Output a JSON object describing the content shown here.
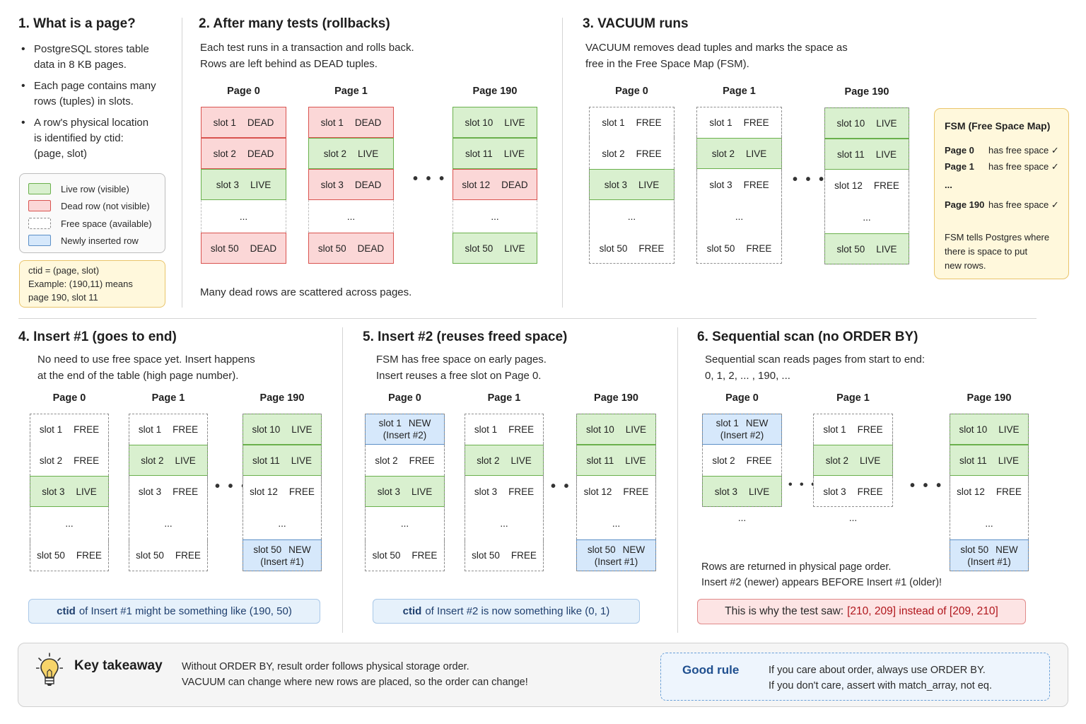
{
  "sec1": {
    "title": "1.  What is a page?",
    "bullets": [
      [
        "PostgreSQL stores table",
        "data in 8 KB pages."
      ],
      [
        "Each page contains many",
        "rows (tuples) in slots."
      ],
      [
        "A row's physical location",
        "is identified by ctid:",
        "(page, slot)"
      ]
    ],
    "legend": [
      {
        "type": "live",
        "label": "Live row (visible)"
      },
      {
        "type": "dead",
        "label": "Dead row (not visible)"
      },
      {
        "type": "free",
        "label": "Free space (available)"
      },
      {
        "type": "new",
        "label": "Newly inserted row"
      }
    ],
    "ctid_note": [
      "ctid = (page, slot)",
      "Example: (190,11) means",
      "page 190, slot 11"
    ]
  },
  "sec2": {
    "title": "2.  After many tests (rollbacks)",
    "desc": [
      "Each test runs in a transaction and rolls back.",
      "Rows are left behind as DEAD tuples."
    ],
    "footer": "Many dead rows are scattered across pages."
  },
  "sec3": {
    "title": "3.  VACUUM runs",
    "desc": [
      "VACUUM removes dead tuples and marks the space as",
      "free in the Free Space Map (FSM)."
    ],
    "fsm": {
      "title": "FSM (Free Space Map)",
      "rows": [
        {
          "page": "Page 0",
          "text": "has free space ✓"
        },
        {
          "page": "Page 1",
          "text": "has free space ✓"
        },
        {
          "page": "...",
          "text": ""
        },
        {
          "page": "Page 190",
          "text": "has free space ✓"
        }
      ],
      "note": [
        "FSM tells Postgres where",
        "there is space to put",
        "new rows."
      ]
    }
  },
  "sec4": {
    "title": "4.  Insert #1 (goes to end)",
    "desc": [
      "No need to use free space yet. Insert happens",
      "at the end of the table (high page number)."
    ],
    "callout_bold": "ctid",
    "callout_rest": "of Insert #1 might be something like (190, 50)"
  },
  "sec5": {
    "title": "5.  Insert #2 (reuses freed space)",
    "desc": [
      "FSM has free space on early pages.",
      "Insert reuses a free slot on Page 0."
    ],
    "callout_bold": "ctid",
    "callout_rest": "of Insert #2 is now something like (0, 1)"
  },
  "sec6": {
    "title": "6.  Sequential scan (no ORDER BY)",
    "desc": [
      "Sequential scan reads pages from start to end:",
      "0, 1, 2, ... , 190, ..."
    ],
    "result": [
      "Rows are returned in physical page order.",
      "Insert #2 (newer) appears BEFORE Insert #1 (older)!"
    ],
    "callout_plain": "This is why the test saw:",
    "callout_red": "[210, 209] instead of [209, 210]"
  },
  "pages": {
    "s2": [
      {
        "label": "Page 0",
        "cells": [
          {
            "t": "dead",
            "a": "slot 1",
            "b": "DEAD"
          },
          {
            "t": "dead",
            "a": "slot 2",
            "b": "DEAD"
          },
          {
            "t": "live",
            "a": "slot 3",
            "b": "LIVE"
          },
          {
            "t": "gap",
            "a": "...",
            "b": ""
          },
          {
            "t": "dead",
            "a": "slot 50",
            "b": "DEAD"
          }
        ]
      },
      {
        "label": "Page 1",
        "cells": [
          {
            "t": "dead",
            "a": "slot 1",
            "b": "DEAD"
          },
          {
            "t": "live",
            "a": "slot 2",
            "b": "LIVE"
          },
          {
            "t": "dead",
            "a": "slot 3",
            "b": "DEAD"
          },
          {
            "t": "gap",
            "a": "...",
            "b": ""
          },
          {
            "t": "dead",
            "a": "slot 50",
            "b": "DEAD"
          }
        ]
      },
      {
        "label": "Page 190",
        "cells": [
          {
            "t": "live",
            "a": "slot 10",
            "b": "LIVE"
          },
          {
            "t": "live",
            "a": "slot 11",
            "b": "LIVE"
          },
          {
            "t": "dead",
            "a": "slot 12",
            "b": "DEAD"
          },
          {
            "t": "gap",
            "a": "...",
            "b": ""
          },
          {
            "t": "live",
            "a": "slot 50",
            "b": "LIVE"
          }
        ]
      }
    ],
    "s3": [
      {
        "label": "Page 0",
        "cells": [
          {
            "t": "free",
            "a": "slot 1",
            "b": "FREE"
          },
          {
            "t": "free",
            "a": "slot 2",
            "b": "FREE"
          },
          {
            "t": "live",
            "a": "slot 3",
            "b": "LIVE"
          },
          {
            "t": "gap",
            "a": "...",
            "b": ""
          },
          {
            "t": "free",
            "a": "slot 50",
            "b": "FREE"
          }
        ]
      },
      {
        "label": "Page 1",
        "cells": [
          {
            "t": "free",
            "a": "slot 1",
            "b": "FREE"
          },
          {
            "t": "live",
            "a": "slot 2",
            "b": "LIVE"
          },
          {
            "t": "free",
            "a": "slot 3",
            "b": "FREE"
          },
          {
            "t": "gap",
            "a": "...",
            "b": ""
          },
          {
            "t": "free",
            "a": "slot 50",
            "b": "FREE"
          }
        ]
      },
      {
        "label": "Page 190",
        "cells": [
          {
            "t": "live",
            "a": "slot 10",
            "b": "LIVE"
          },
          {
            "t": "live",
            "a": "slot 11",
            "b": "LIVE"
          },
          {
            "t": "free",
            "a": "slot 12",
            "b": "FREE"
          },
          {
            "t": "gap",
            "a": "...",
            "b": ""
          },
          {
            "t": "live",
            "a": "slot 50",
            "b": "LIVE"
          }
        ]
      }
    ],
    "s4": [
      {
        "label": "Page 0",
        "cells": [
          {
            "t": "free",
            "a": "slot 1",
            "b": "FREE"
          },
          {
            "t": "free",
            "a": "slot 2",
            "b": "FREE"
          },
          {
            "t": "live",
            "a": "slot 3",
            "b": "LIVE"
          },
          {
            "t": "gap",
            "a": "...",
            "b": ""
          },
          {
            "t": "free",
            "a": "slot 50",
            "b": "FREE"
          }
        ]
      },
      {
        "label": "Page 1",
        "cells": [
          {
            "t": "free",
            "a": "slot 1",
            "b": "FREE"
          },
          {
            "t": "live",
            "a": "slot 2",
            "b": "LIVE"
          },
          {
            "t": "free",
            "a": "slot 3",
            "b": "FREE"
          },
          {
            "t": "gap",
            "a": "...",
            "b": ""
          },
          {
            "t": "free",
            "a": "slot 50",
            "b": "FREE"
          }
        ]
      },
      {
        "label": "Page 190",
        "cells": [
          {
            "t": "live",
            "a": "slot 10",
            "b": "LIVE"
          },
          {
            "t": "live",
            "a": "slot 11",
            "b": "LIVE"
          },
          {
            "t": "free",
            "a": "slot 12",
            "b": "FREE"
          },
          {
            "t": "gap",
            "a": "...",
            "b": ""
          },
          {
            "t": "new",
            "a": "slot 50",
            "b": "NEW",
            "c": "(Insert #1)"
          }
        ]
      }
    ],
    "s5": [
      {
        "label": "Page 0",
        "cells": [
          {
            "t": "new",
            "a": "slot 1",
            "b": "NEW",
            "c": "(Insert #2)"
          },
          {
            "t": "free",
            "a": "slot 2",
            "b": "FREE"
          },
          {
            "t": "live",
            "a": "slot 3",
            "b": "LIVE"
          },
          {
            "t": "gap",
            "a": "...",
            "b": ""
          },
          {
            "t": "free",
            "a": "slot 50",
            "b": "FREE"
          }
        ]
      },
      {
        "label": "Page 1",
        "cells": [
          {
            "t": "free",
            "a": "slot 1",
            "b": "FREE"
          },
          {
            "t": "live",
            "a": "slot 2",
            "b": "LIVE"
          },
          {
            "t": "free",
            "a": "slot 3",
            "b": "FREE"
          },
          {
            "t": "gap",
            "a": "...",
            "b": ""
          },
          {
            "t": "free",
            "a": "slot 50",
            "b": "FREE"
          }
        ]
      },
      {
        "label": "Page 190",
        "cells": [
          {
            "t": "live",
            "a": "slot 10",
            "b": "LIVE"
          },
          {
            "t": "live",
            "a": "slot 11",
            "b": "LIVE"
          },
          {
            "t": "free",
            "a": "slot 12",
            "b": "FREE"
          },
          {
            "t": "gap",
            "a": "...",
            "b": ""
          },
          {
            "t": "new",
            "a": "slot 50",
            "b": "NEW",
            "c": "(Insert #1)"
          }
        ]
      }
    ],
    "s6": [
      {
        "label": "Page 0",
        "cells": [
          {
            "t": "new",
            "a": "slot 1",
            "b": "NEW",
            "c": "(Insert #2)"
          },
          {
            "t": "free",
            "a": "slot 2",
            "b": "FREE"
          },
          {
            "t": "live",
            "a": "slot 3",
            "b": "LIVE"
          },
          {
            "t": "gapopen",
            "a": "...",
            "b": ""
          }
        ]
      },
      {
        "label": "Page 1",
        "cells": [
          {
            "t": "free",
            "a": "slot 1",
            "b": "FREE"
          },
          {
            "t": "live",
            "a": "slot 2",
            "b": "LIVE"
          },
          {
            "t": "free",
            "a": "slot 3",
            "b": "FREE"
          },
          {
            "t": "gapopen",
            "a": "...",
            "b": ""
          }
        ]
      },
      {
        "label": "Page 190",
        "cells": [
          {
            "t": "live",
            "a": "slot 10",
            "b": "LIVE"
          },
          {
            "t": "live",
            "a": "slot 11",
            "b": "LIVE"
          },
          {
            "t": "free",
            "a": "slot 12",
            "b": "FREE"
          },
          {
            "t": "gap",
            "a": "...",
            "b": ""
          },
          {
            "t": "new",
            "a": "slot 50",
            "b": "NEW",
            "c": "(Insert #1)"
          }
        ]
      }
    ]
  },
  "ellipsis": "• • •",
  "takeaway": {
    "title": "Key takeaway",
    "text": [
      "Without ORDER BY, result order follows physical storage order.",
      "VACUUM can change where new rows are placed, so the order can change!"
    ],
    "icon": "lightbulb-icon",
    "good_rule_title": "Good rule",
    "good_rule_text1": "If you care about order, always use ORDER BY.",
    "good_rule_text2_pre": "If you don't care, assert with ",
    "good_rule_text2_code": "match_array",
    "good_rule_text2_post": ", not eq."
  },
  "colors": {
    "live": "#d9f0cf",
    "dead": "#fbd7d7",
    "new": "#d6e8fb",
    "note": "#fff8dc",
    "accent_red": "#b0161c",
    "accent_blue": "#1f3f6e"
  }
}
